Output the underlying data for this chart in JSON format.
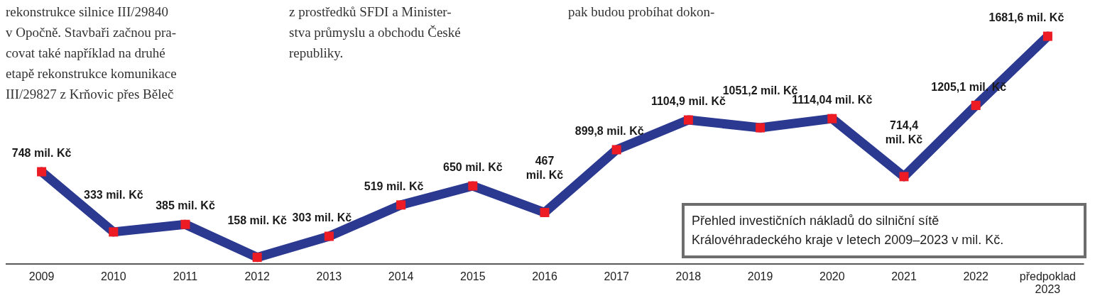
{
  "chart_data": {
    "type": "line",
    "title": "Přehled investičních nákladů do silniční sítě\nKrálovéhradeckého kraje v letech 2009–2023 v mil. Kč.",
    "annotations": [
      "rekonstrukce silnice III/29840\nv Opočně. Stavbaři začnou pra-\ncovat také například na druhé\netapě rekonstrukce komunikace\nIII/29827 z Krňovic přes Běleč",
      "z prostředků SFDI a Minister-\nstva průmyslu a obchodu České\nrepubliky.",
      "pak budou probíhat dokon-"
    ],
    "categories": [
      "2009",
      "2010",
      "2011",
      "2012",
      "2013",
      "2014",
      "2015",
      "2016",
      "2017",
      "2018",
      "2019",
      "2020",
      "2021",
      "2022",
      "předpoklad\n2023"
    ],
    "series": [
      {
        "color": "#2b3990",
        "colors": [
          "#ed1c24",
          "#ed1c24",
          "#ed1c24",
          "#ed1c24",
          "#ed1c24",
          "#ed1c24",
          "#ed1c24",
          "#ed1c24",
          "#ed1c24",
          "#ed1c24",
          "#ed1c24",
          "#ed1c24",
          "#ed1c24",
          "#ed1c24",
          "#ed1c24"
        ],
        "values": [
          748,
          333,
          385,
          158,
          303,
          519,
          650,
          467,
          899.8,
          1104.9,
          1051.2,
          1114.04,
          714.4,
          1205.1,
          1681.6
        ],
        "value_labels": [
          "748 mil. Kč",
          "333 mil. Kč",
          "385 mil. Kč",
          "158 mil. Kč",
          "303 mil. Kč",
          "519 mil. Kč",
          "650 mil. Kč",
          "467\nmil. Kč",
          "899,8 mil. Kč",
          "1104,9 mil. Kč",
          "1051,2 mil. Kč",
          "1114,04 mil. Kč",
          "714,4\nmil. Kč",
          "1205,1 mil. Kč",
          "1681,6 mil. Kč"
        ]
      }
    ],
    "marker": "square",
    "line_style": "solid",
    "grid": false
  }
}
